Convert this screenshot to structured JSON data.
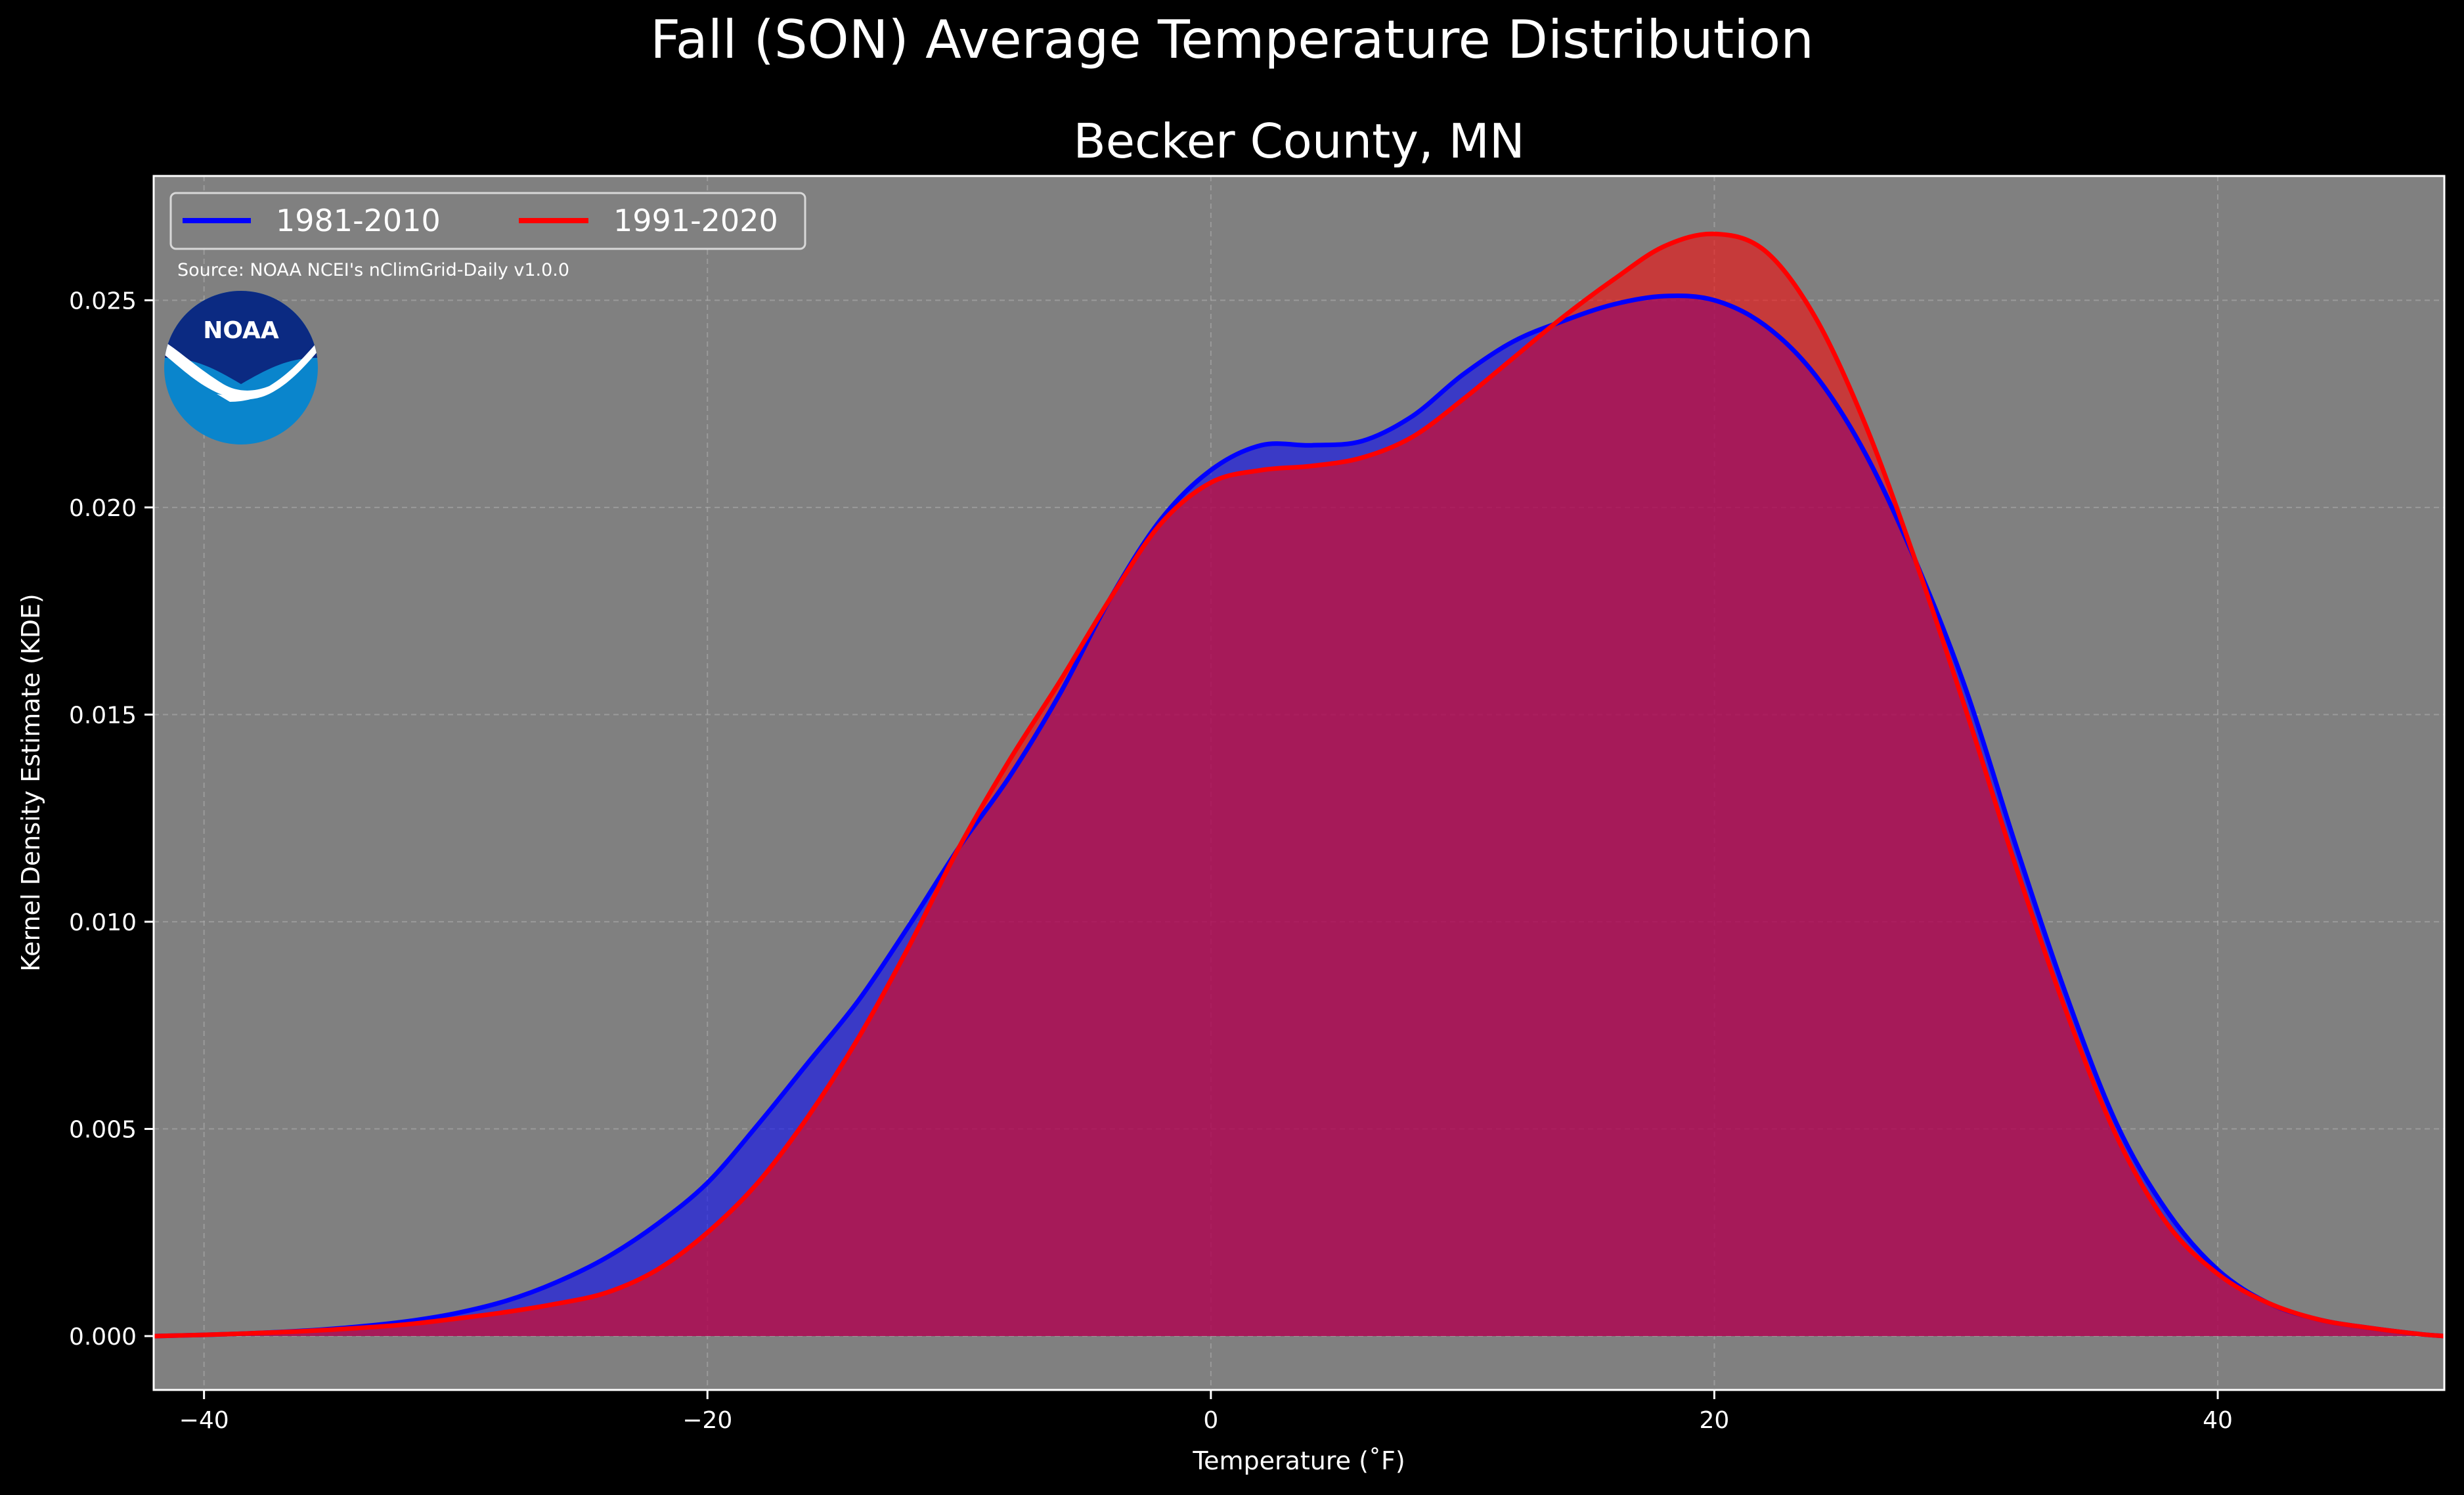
{
  "chart_data": {
    "type": "area",
    "suptitle": "Fall (SON) Average Temperature Distribution",
    "title": "Becker County, MN",
    "xlabel": "Temperature (˚F)",
    "ylabel": "Kernel Density Estimate (KDE)",
    "xlim": [
      -42,
      49
    ],
    "ylim": [
      -0.0013,
      0.028
    ],
    "x_ticks": [
      -40,
      -20,
      0,
      20,
      40
    ],
    "x_tick_labels": [
      "−40",
      "−20",
      "0",
      "20",
      "40"
    ],
    "y_ticks": [
      0.0,
      0.005,
      0.01,
      0.015,
      0.02,
      0.025
    ],
    "y_tick_labels": [
      "0.000",
      "0.005",
      "0.010",
      "0.015",
      "0.020",
      "0.025"
    ],
    "grid": true,
    "legend_position": "upper-left",
    "source_note": "Source: NOAA NCEI's nClimGrid-Daily v1.0.0",
    "logo_text": "NOAA",
    "colors": {
      "background": "#000000",
      "plot_background": "#808080",
      "series_1981": "#0000ff",
      "series_1991": "#ff0000"
    },
    "series": [
      {
        "name": "1981-2010",
        "color": "#0000ff",
        "x": [
          -42,
          -40,
          -38,
          -36,
          -34,
          -32,
          -30,
          -28,
          -26,
          -24,
          -22,
          -20,
          -18,
          -16,
          -14,
          -12,
          -10,
          -8,
          -6,
          -4,
          -2,
          0,
          2,
          4,
          6,
          8,
          10,
          12,
          14,
          16,
          18,
          20,
          22,
          24,
          26,
          28,
          30,
          32,
          34,
          36,
          38,
          40,
          42,
          44,
          46,
          48,
          49
        ],
        "y": [
          0.0,
          3e-05,
          7e-05,
          0.00013,
          0.00022,
          0.00035,
          0.00055,
          0.00085,
          0.0013,
          0.0019,
          0.0027,
          0.0037,
          0.0051,
          0.0066,
          0.0081,
          0.0099,
          0.0118,
          0.0135,
          0.0155,
          0.0178,
          0.0197,
          0.0209,
          0.0215,
          0.0215,
          0.0216,
          0.0222,
          0.0232,
          0.024,
          0.0245,
          0.0249,
          0.0251,
          0.025,
          0.0244,
          0.0232,
          0.0213,
          0.0187,
          0.0156,
          0.0118,
          0.0082,
          0.0051,
          0.003,
          0.0016,
          0.0008,
          0.0004,
          0.0002,
          5e-05,
          0.0
        ]
      },
      {
        "name": "1991-2020",
        "color": "#ff0000",
        "x": [
          -42,
          -40,
          -38,
          -36,
          -34,
          -32,
          -30,
          -28,
          -26,
          -24,
          -22,
          -20,
          -18,
          -16,
          -14,
          -12,
          -10,
          -8,
          -6,
          -4,
          -2,
          0,
          2,
          4,
          6,
          8,
          10,
          12,
          14,
          16,
          18,
          20,
          22,
          24,
          26,
          28,
          30,
          32,
          34,
          36,
          38,
          40,
          42,
          44,
          46,
          48,
          49
        ],
        "y": [
          0.0,
          3e-05,
          7e-05,
          0.00012,
          0.00019,
          0.00028,
          0.00042,
          0.00058,
          0.00078,
          0.00105,
          0.0016,
          0.0025,
          0.0037,
          0.0053,
          0.0072,
          0.0094,
          0.0118,
          0.0139,
          0.0158,
          0.0178,
          0.0196,
          0.0206,
          0.0209,
          0.021,
          0.0212,
          0.0217,
          0.0226,
          0.0236,
          0.0246,
          0.0255,
          0.0263,
          0.0266,
          0.0262,
          0.0246,
          0.022,
          0.0187,
          0.0151,
          0.0113,
          0.0078,
          0.0048,
          0.0027,
          0.0015,
          0.0008,
          0.0004,
          0.0002,
          5e-05,
          0.0
        ]
      }
    ]
  }
}
